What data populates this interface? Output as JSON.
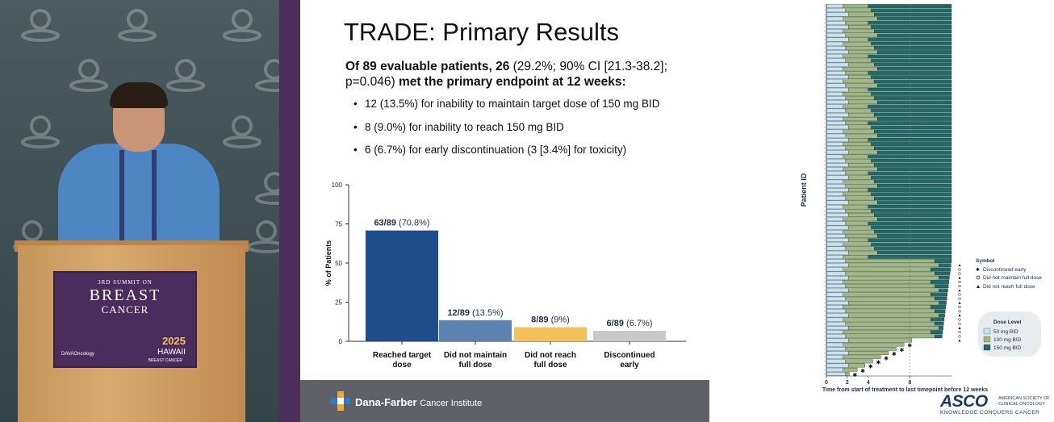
{
  "video": {
    "sign": {
      "summit": "3RD SUMMIT ON",
      "line1": "BREAST",
      "line2": "CANCER",
      "org": "DAVAOncology",
      "year": "2025",
      "place": "HAWAII",
      "place_sub": "BREAST CANCER"
    }
  },
  "slide": {
    "title": "TRADE: Primary Results",
    "summary_bold1": "Of 89 evaluable patients, 26",
    "summary_normal": "(29.2%; 90% CI [21.3-38.2]; p=0.046)",
    "summary_bold2": "met the primary endpoint at 12 weeks:",
    "bullets": [
      "12 (13.5%) for inability to maintain target dose of 150 mg BID",
      "8 (9.0%) for inability to reach 150 mg BID",
      "6 (6.7%) for early discontinuation (3 [3.4%] for toxicity)"
    ],
    "footer_brand": "Dana-Farber",
    "footer_sub": "Cancer Institute"
  },
  "chart_data": [
    {
      "type": "bar",
      "ylabel": "% of Patients",
      "ylim": [
        0,
        100
      ],
      "yticks": [
        "0",
        "25",
        "50",
        "75",
        "100"
      ],
      "categories": [
        [
          "Reached target",
          "dose"
        ],
        [
          "Did not maintain",
          "full dose"
        ],
        [
          "Did not reach",
          "full dose"
        ],
        [
          "Discontinued",
          "early"
        ]
      ],
      "values": [
        70.8,
        13.5,
        9,
        6.7
      ],
      "labels_bold": [
        "63/89",
        "12/89",
        "8/89",
        "6/89"
      ],
      "labels_normal": [
        "(70.8%)",
        "(13.5%)",
        "(9%)",
        "(6.7%)"
      ],
      "colors": [
        "#1f4e8c",
        "#5b82b0",
        "#f2c15a",
        "#c9c9c9"
      ]
    },
    {
      "type": "swimmer",
      "ylabel": "Patient ID",
      "xlabel": "Time from start of treatment to last timepoint before 12 weeks",
      "xticks": [
        "0",
        "2",
        "4",
        "8"
      ],
      "xtick_values": [
        0,
        2,
        4,
        8
      ],
      "xlim": [
        0,
        12
      ],
      "reference_line_x": 8,
      "legend_symbol_title": "Symbol",
      "legend_symbols": [
        "Discontinued early",
        "Did not maintain full dose",
        "Did not reach full dose"
      ],
      "legend_dose_title": "Dose Level",
      "legend_doses": [
        "50 mg BID",
        "100 mg BID",
        "150 mg BID"
      ],
      "dose_colors": [
        "#c6e3f2",
        "#9db882",
        "#1f6b68"
      ],
      "patient_count": 89
    }
  ],
  "asco": {
    "name": "ASCO",
    "full": "AMERICAN SOCIETY OF CLINICAL ONCOLOGY",
    "tagline": "KNOWLEDGE CONQUERS CANCER"
  }
}
